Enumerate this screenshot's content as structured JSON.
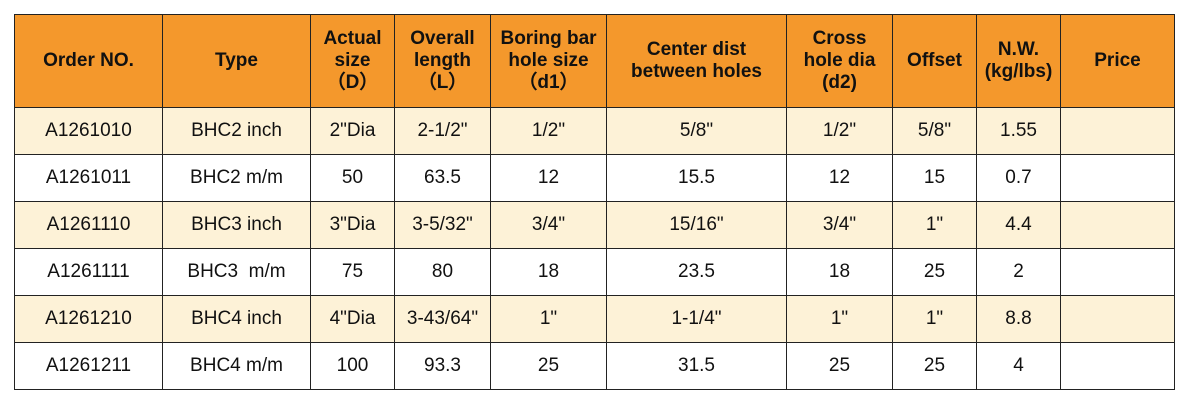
{
  "headers": [
    [
      "Order NO."
    ],
    [
      "Type"
    ],
    [
      "Actual",
      "size",
      "（D）"
    ],
    [
      "Overall",
      "length",
      "（L）"
    ],
    [
      "Boring bar",
      "hole size",
      "（d1）"
    ],
    [
      "Center dist",
      "between holes"
    ],
    [
      "Cross",
      "hole dia",
      "(d2)"
    ],
    [
      "Offset"
    ],
    [
      "N.W.",
      "(kg/lbs)"
    ],
    [
      "Price"
    ]
  ],
  "rows": [
    [
      "A1261010",
      "BHC2 inch",
      "2\"Dia",
      "2-1/2\"",
      "1/2\"",
      "5/8\"",
      "1/2\"",
      "5/8\"",
      "1.55",
      ""
    ],
    [
      "A1261011",
      "BHC2 m/m",
      "50",
      "63.5",
      "12",
      "15.5",
      "12",
      "15",
      "0.7",
      ""
    ],
    [
      "A1261110",
      "BHC3 inch",
      "3\"Dia",
      "3-5/32\"",
      "3/4\"",
      "15/16\"",
      "3/4\"",
      "1\"",
      "4.4",
      ""
    ],
    [
      "A1261111",
      "BHC3  m/m",
      "75",
      "80",
      "18",
      "23.5",
      "18",
      "25",
      "2",
      ""
    ],
    [
      "A1261210",
      "BHC4 inch",
      "4\"Dia",
      "3-43/64\"",
      "1\"",
      "1-1/4\"",
      "1\"",
      "1\"",
      "8.8",
      ""
    ],
    [
      "A1261211",
      "BHC4 m/m",
      "100",
      "93.3",
      "25",
      "31.5",
      "25",
      "25",
      "4",
      ""
    ]
  ],
  "colors": {
    "header_bg": "#f4982c",
    "tint_row_bg": "#fdf2d7",
    "plain_row_bg": "#ffffff",
    "border": "#222222"
  }
}
